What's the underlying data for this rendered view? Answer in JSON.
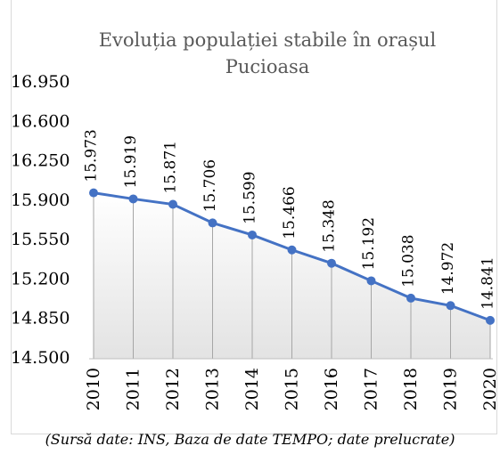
{
  "chart_data": {
    "type": "line",
    "title": "Evoluția populației stabile în orașul Pucioasa",
    "note": "(Sursă date: INS, Baza de date TEMPO; date prelucrate)",
    "categories": [
      "2010",
      "2011",
      "2012",
      "2013",
      "2014",
      "2015",
      "2016",
      "2017",
      "2018",
      "2019",
      "2020"
    ],
    "values": [
      15973,
      15919,
      15871,
      15706,
      15599,
      15466,
      15348,
      15192,
      15038,
      14972,
      14841
    ],
    "value_labels": [
      "15.973",
      "15.919",
      "15.871",
      "15.706",
      "15.599",
      "15.466",
      "15.348",
      "15.192",
      "15.038",
      "14.972",
      "14.841"
    ],
    "color": "#4472c4",
    "ylim": [
      14500,
      16950
    ],
    "yticks": [
      {
        "value": 14500,
        "label": "14.500"
      },
      {
        "value": 14850,
        "label": "14.850"
      },
      {
        "value": 15200,
        "label": "15.200"
      },
      {
        "value": 15550,
        "label": "15.550"
      },
      {
        "value": 15900,
        "label": "15.900"
      },
      {
        "value": 16250,
        "label": "16.250"
      },
      {
        "value": 16600,
        "label": "16.600"
      },
      {
        "value": 16950,
        "label": "16.950"
      }
    ]
  }
}
